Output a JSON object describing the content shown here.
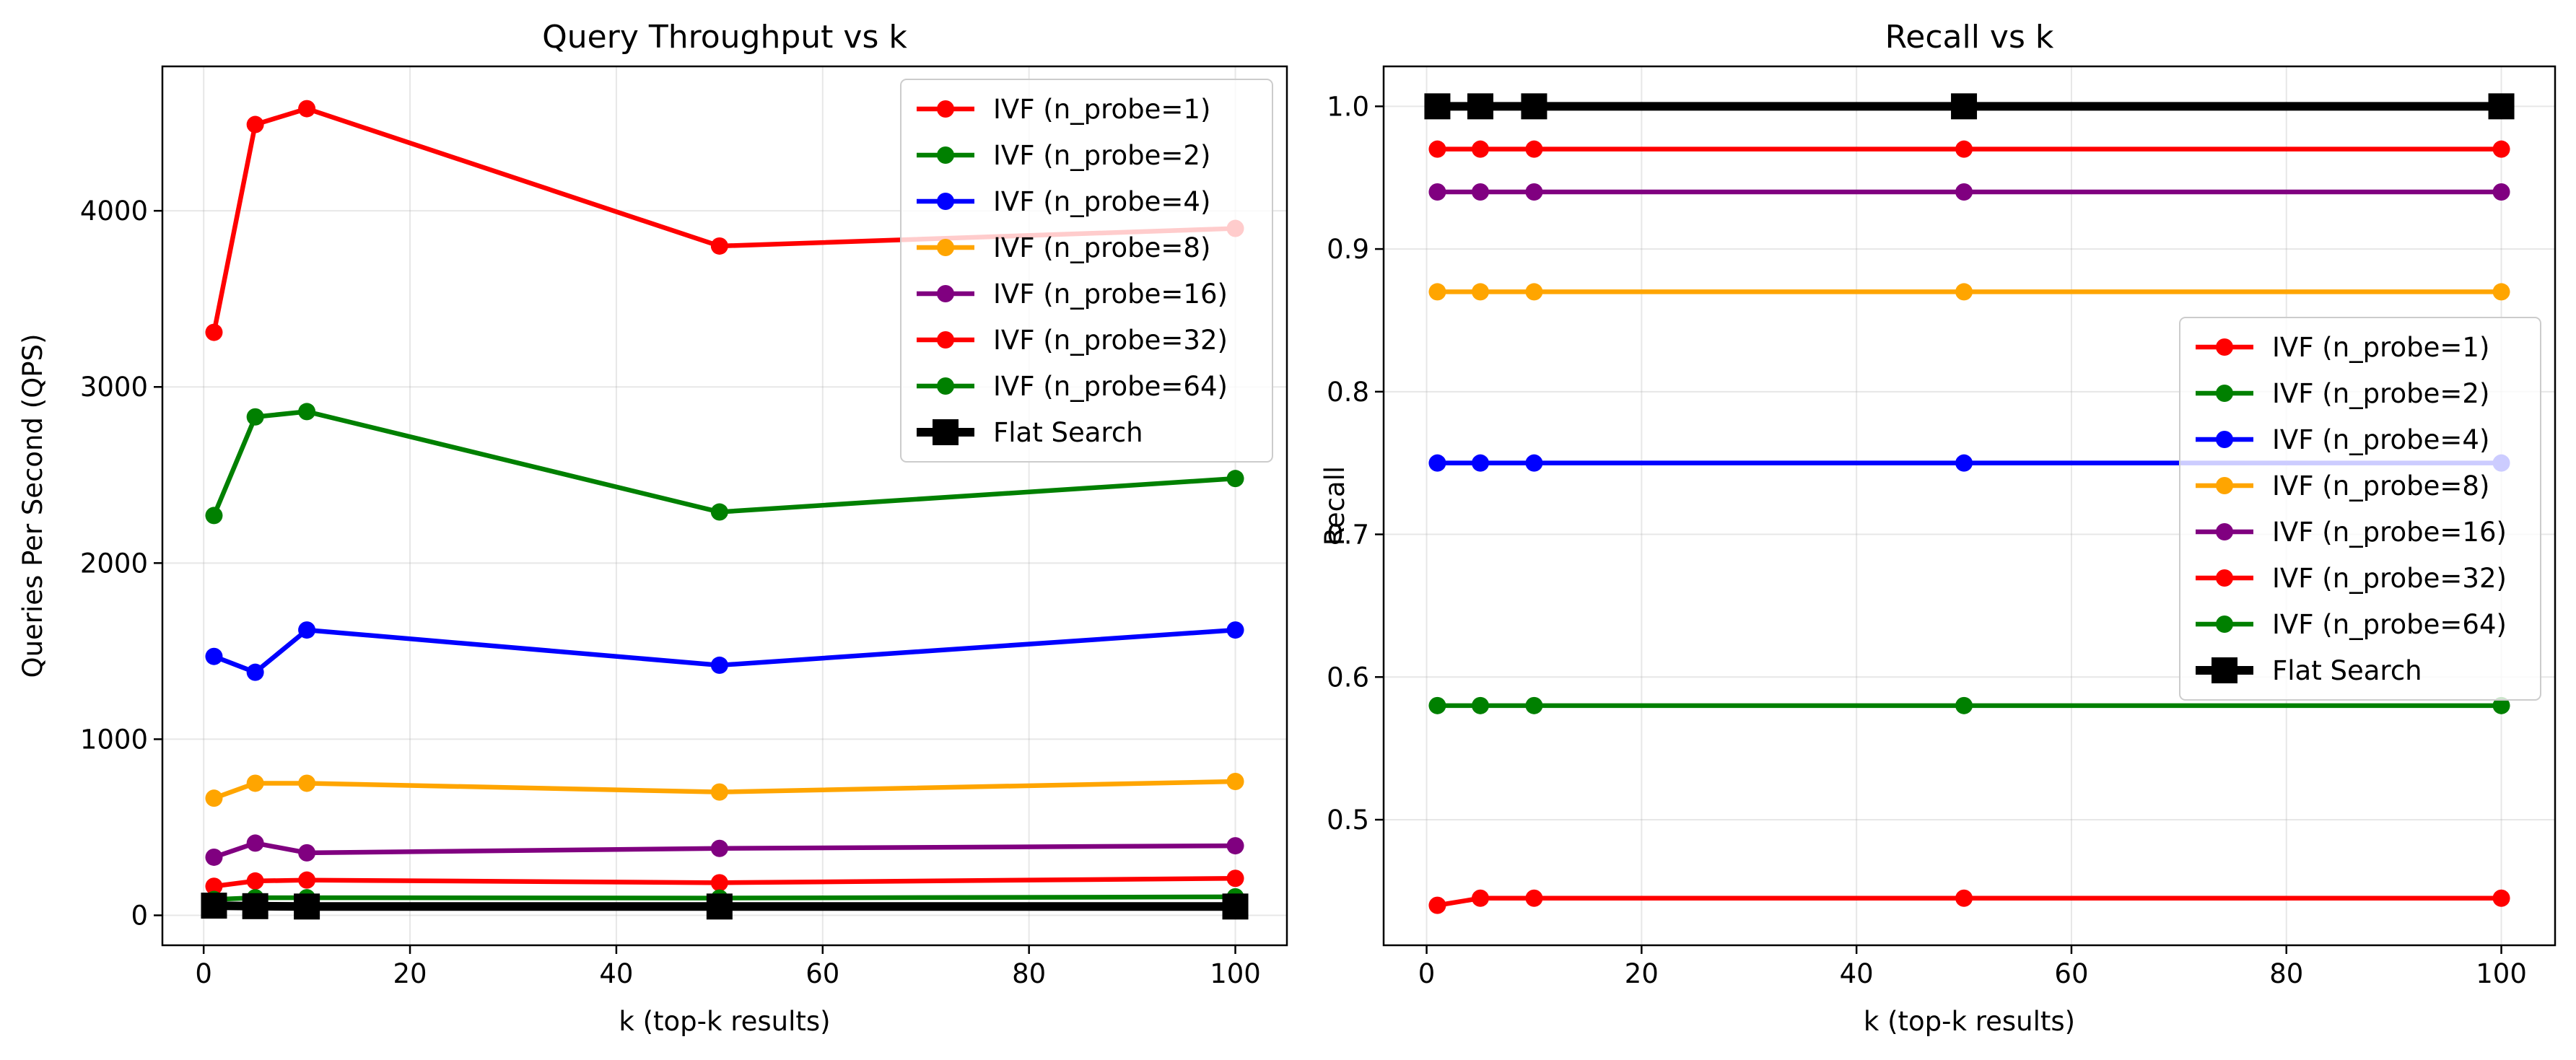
{
  "chart_data": [
    {
      "type": "line",
      "title": "Query Throughput vs k",
      "xlabel": "k (top-k results)",
      "ylabel": "Queries Per Second (QPS)",
      "xlim": [
        -4,
        105
      ],
      "ylim": [
        -170,
        4820
      ],
      "xticks": [
        0,
        20,
        40,
        60,
        80,
        100
      ],
      "xtick_labels": [
        "0",
        "20",
        "40",
        "60",
        "80",
        "100"
      ],
      "yticks": [
        0,
        1000,
        2000,
        3000,
        4000
      ],
      "ytick_labels": [
        "0",
        "1000",
        "2000",
        "3000",
        "4000"
      ],
      "grid": true,
      "legend_position": "top-right",
      "x": [
        1,
        5,
        10,
        50,
        100
      ],
      "series": [
        {
          "name": "IVF (n_probe=1)",
          "color": "#ff0000",
          "marker": "circle",
          "values": [
            3310,
            4490,
            4580,
            3800,
            3900
          ]
        },
        {
          "name": "IVF (n_probe=2)",
          "color": "#008000",
          "marker": "circle",
          "values": [
            2270,
            2830,
            2860,
            2290,
            2480
          ]
        },
        {
          "name": "IVF (n_probe=4)",
          "color": "#0000ff",
          "marker": "circle",
          "values": [
            1470,
            1380,
            1620,
            1420,
            1620
          ]
        },
        {
          "name": "IVF (n_probe=8)",
          "color": "#ffa500",
          "marker": "circle",
          "values": [
            665,
            750,
            750,
            700,
            760
          ]
        },
        {
          "name": "IVF (n_probe=16)",
          "color": "#800080",
          "marker": "circle",
          "values": [
            330,
            410,
            355,
            380,
            395
          ]
        },
        {
          "name": "IVF (n_probe=32)",
          "color": "#ff0000",
          "marker": "circle",
          "values": [
            165,
            195,
            200,
            185,
            210
          ]
        },
        {
          "name": "IVF (n_probe=64)",
          "color": "#008000",
          "marker": "circle",
          "values": [
            90,
            100,
            100,
            98,
            105
          ]
        },
        {
          "name": "Flat Search",
          "color": "#000000",
          "marker": "square",
          "values": [
            55,
            52,
            50,
            50,
            50
          ]
        }
      ]
    },
    {
      "type": "line",
      "title": "Recall vs k",
      "xlabel": "k (top-k results)",
      "ylabel": "Recall",
      "xlim": [
        -4,
        105
      ],
      "ylim": [
        0.412,
        1.028
      ],
      "xticks": [
        0,
        20,
        40,
        60,
        80,
        100
      ],
      "xtick_labels": [
        "0",
        "20",
        "40",
        "60",
        "80",
        "100"
      ],
      "yticks": [
        0.5,
        0.6,
        0.7,
        0.8,
        0.9,
        1.0
      ],
      "ytick_labels": [
        "0.5",
        "0.6",
        "0.7",
        "0.8",
        "0.9",
        "1.0"
      ],
      "grid": true,
      "legend_position": "center-right",
      "x": [
        1,
        5,
        10,
        50,
        100
      ],
      "series": [
        {
          "name": "IVF (n_probe=1)",
          "color": "#ff0000",
          "marker": "circle",
          "values": [
            0.44,
            0.445,
            0.445,
            0.445,
            0.445
          ]
        },
        {
          "name": "IVF (n_probe=2)",
          "color": "#008000",
          "marker": "circle",
          "values": [
            0.58,
            0.58,
            0.58,
            0.58,
            0.58
          ]
        },
        {
          "name": "IVF (n_probe=4)",
          "color": "#0000ff",
          "marker": "circle",
          "values": [
            0.75,
            0.75,
            0.75,
            0.75,
            0.75
          ]
        },
        {
          "name": "IVF (n_probe=8)",
          "color": "#ffa500",
          "marker": "circle",
          "values": [
            0.87,
            0.87,
            0.87,
            0.87,
            0.87
          ]
        },
        {
          "name": "IVF (n_probe=16)",
          "color": "#800080",
          "marker": "circle",
          "values": [
            0.94,
            0.94,
            0.94,
            0.94,
            0.94
          ]
        },
        {
          "name": "IVF (n_probe=32)",
          "color": "#ff0000",
          "marker": "circle",
          "values": [
            0.97,
            0.97,
            0.97,
            0.97,
            0.97
          ]
        },
        {
          "name": "IVF (n_probe=64)",
          "color": "#008000",
          "marker": "circle",
          "values": [
            1.0,
            1.0,
            1.0,
            1.0,
            1.0
          ]
        },
        {
          "name": "Flat Search",
          "color": "#000000",
          "marker": "square",
          "values": [
            1.0,
            1.0,
            1.0,
            1.0,
            1.0
          ]
        }
      ]
    }
  ]
}
